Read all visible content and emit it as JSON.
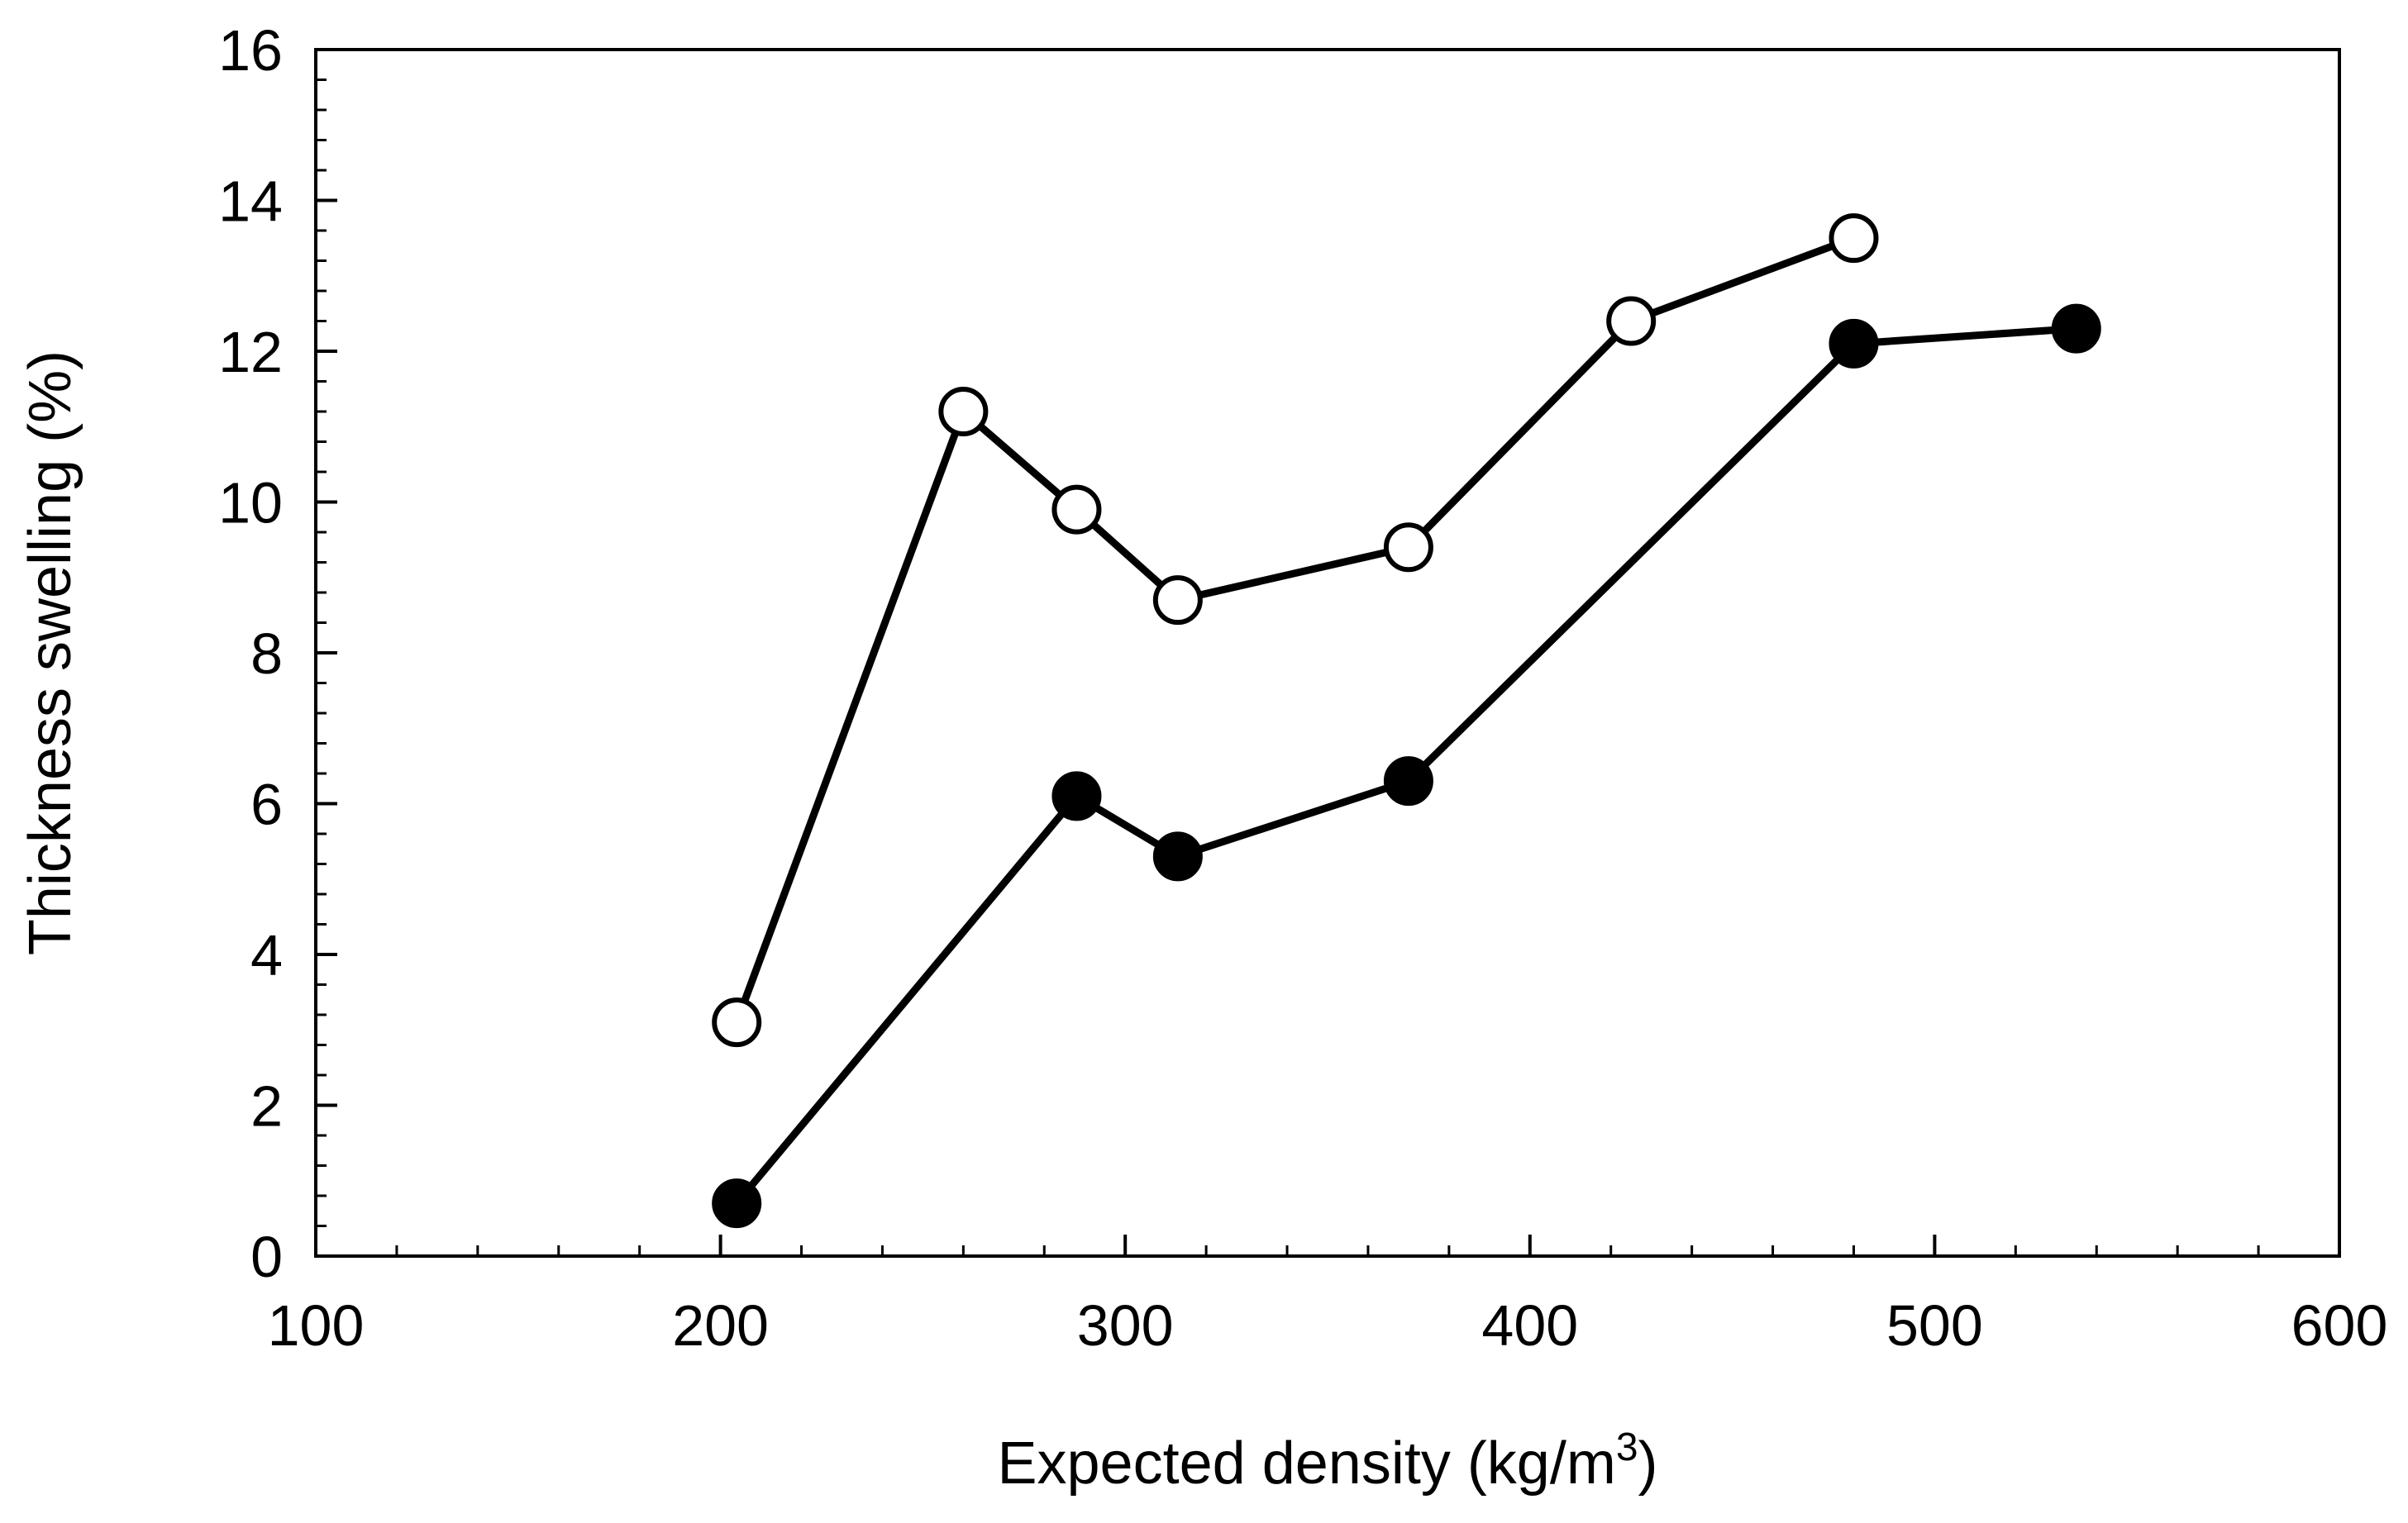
{
  "chart_data": {
    "type": "line",
    "title": "",
    "xlabel": "Expected density (kg/m",
    "xlabel_superscript": "3",
    "xlabel_suffix": ")",
    "ylabel": "Thickness swelling (%)",
    "xlim": [
      100,
      600
    ],
    "ylim": [
      0,
      16
    ],
    "x_ticks": [
      100,
      200,
      300,
      400,
      500,
      600
    ],
    "y_ticks": [
      0,
      2,
      4,
      6,
      8,
      10,
      12,
      14,
      16
    ],
    "x_minor_step": 20,
    "y_minor_step": 0.4,
    "grid": false,
    "series": [
      {
        "name": "open circles",
        "marker": "open-circle",
        "x": [
          204,
          260,
          288,
          313,
          370,
          425,
          480
        ],
        "y": [
          3.1,
          11.2,
          9.9,
          8.7,
          9.4,
          12.4,
          13.5
        ]
      },
      {
        "name": "filled circles",
        "marker": "filled-circle",
        "x": [
          204,
          288,
          313,
          370,
          480,
          535
        ],
        "y": [
          0.7,
          6.1,
          5.3,
          6.3,
          12.1,
          12.3
        ]
      }
    ],
    "colors": {
      "line": "#000000",
      "marker_fill_open": "#ffffff",
      "marker_fill_filled": "#000000",
      "background": "#ffffff"
    }
  }
}
